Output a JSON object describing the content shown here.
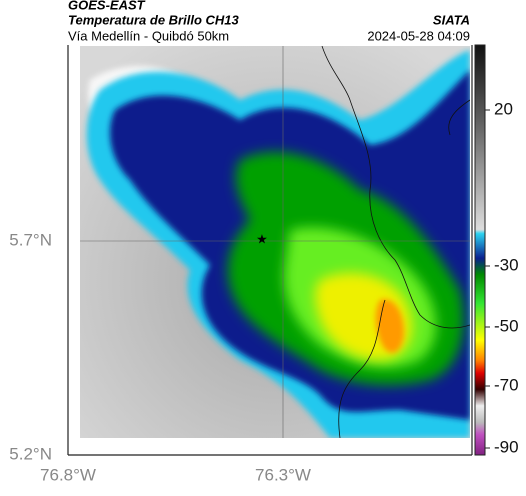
{
  "header": {
    "source": "GOES-EAST",
    "title": "Temperatura de Brillo CH13",
    "org": "SIATA",
    "route": "Vía Medellín - Quibdó 50km",
    "datetime": "2024-05-28 04:09"
  },
  "axes": {
    "lat_labels": [
      "5.7°N",
      "5.2°N"
    ],
    "lon_labels": [
      "76.8°W",
      "76.3°W"
    ]
  },
  "colorbar": {
    "labels": [
      "20",
      "-30",
      "-50",
      "-70",
      "-90"
    ]
  }
}
